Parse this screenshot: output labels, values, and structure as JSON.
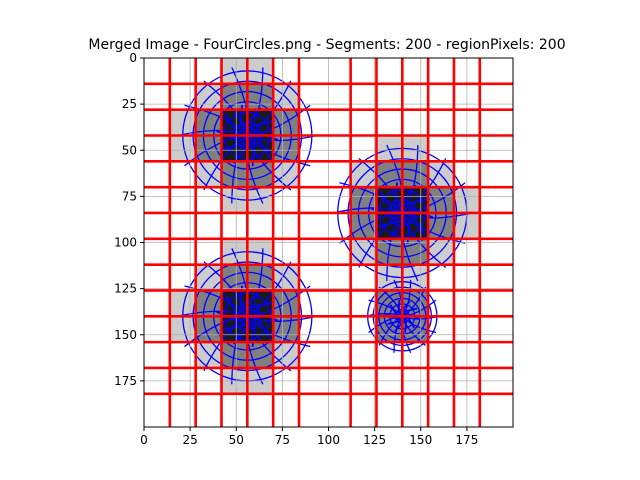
{
  "chart_data": {
    "type": "heatmap",
    "title": "Merged Image - FourCircles.png - Segments: 200 - regionPixels: 200",
    "xlabel": "",
    "ylabel": "",
    "xlim": [
      0,
      200
    ],
    "ylim": [
      200,
      0
    ],
    "y_axis_inverted": true,
    "grid": true,
    "x_ticks": [
      0,
      25,
      50,
      75,
      100,
      125,
      150,
      175
    ],
    "y_ticks": [
      0,
      25,
      50,
      75,
      100,
      125,
      150,
      175
    ],
    "red_grid_lines": {
      "color": "#ff0000",
      "x": [
        14,
        28,
        42,
        56,
        70,
        84,
        112,
        126,
        140,
        154,
        168,
        182
      ],
      "y": [
        14,
        28,
        42,
        56,
        70,
        84,
        98,
        112,
        126,
        140,
        154,
        168,
        182
      ]
    },
    "circles": [
      {
        "cx": 56,
        "cy": 42,
        "r": 28
      },
      {
        "cx": 140,
        "cy": 84,
        "r": 28
      },
      {
        "cx": 56,
        "cy": 140,
        "r": 28
      },
      {
        "cx": 140,
        "cy": 140,
        "r": 15
      }
    ],
    "colors": {
      "region_fill": "#cccccc",
      "mid_fill": "#808080",
      "dark_fill": "#1a1a1a",
      "contour": "#0000ff",
      "grid": "#b0b0b0"
    }
  }
}
